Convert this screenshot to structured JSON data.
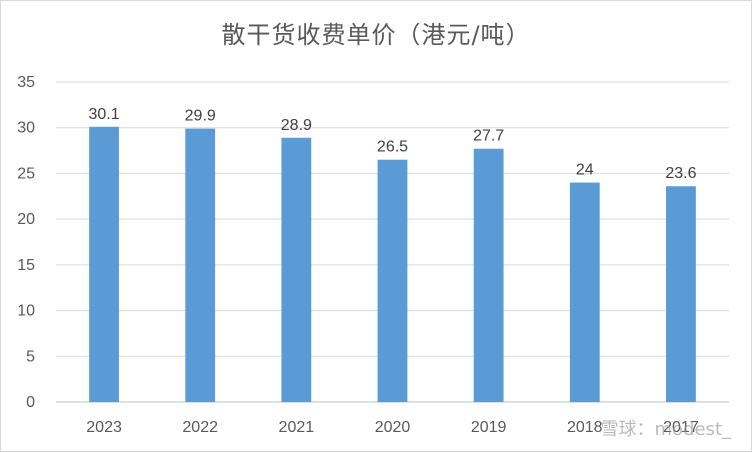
{
  "chart_data": {
    "type": "bar",
    "title": "散干货收费单价（港元/吨）",
    "categories": [
      "2023",
      "2022",
      "2021",
      "2020",
      "2019",
      "2018",
      "2017"
    ],
    "values": [
      30.1,
      29.9,
      28.9,
      26.5,
      27.7,
      24,
      23.6
    ],
    "data_labels": [
      "30.1",
      "29.9",
      "28.9",
      "26.5",
      "27.7",
      "24",
      "23.6"
    ],
    "xlabel": "",
    "ylabel": "",
    "ylim": [
      0,
      35
    ],
    "yticks": [
      0,
      5,
      10,
      15,
      20,
      25,
      30,
      35
    ],
    "grid": true,
    "legend": "none",
    "bar_color": "#5b9bd5"
  },
  "watermark": "雪球：modest_"
}
